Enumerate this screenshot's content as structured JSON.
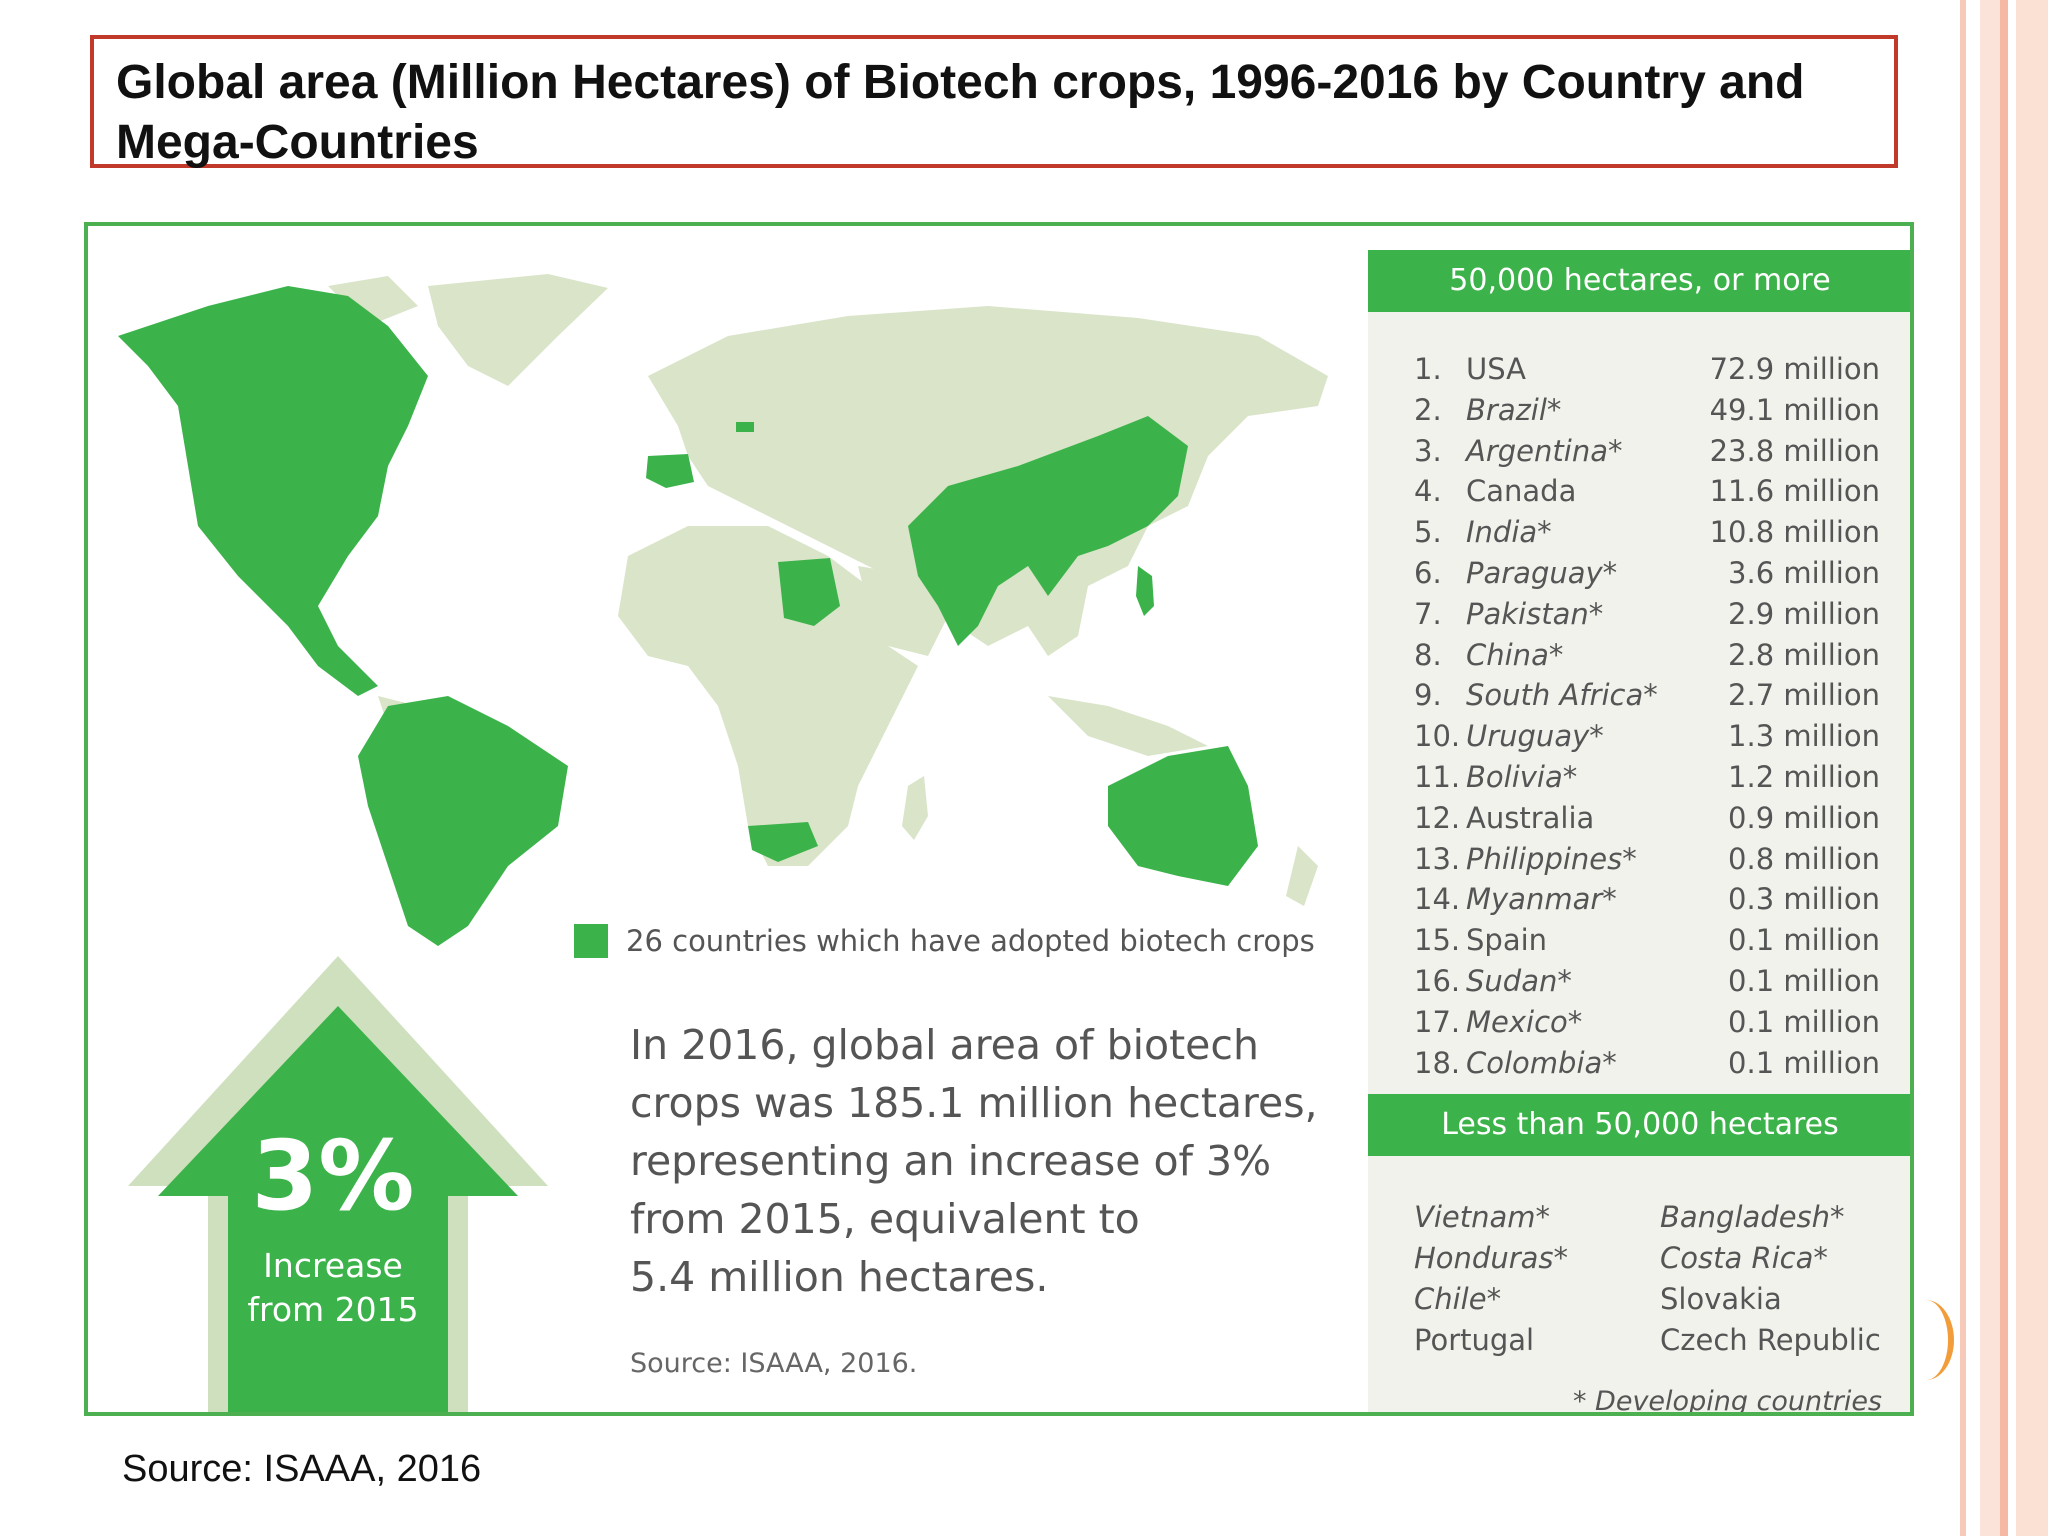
{
  "title": "Global area (Million Hectares) of Biotech crops, 1996-2016 by Country and Mega-Countries",
  "colors": {
    "adopted": "#3cb34a",
    "other_land": "#d9e4c9",
    "accent_border": "#c0392b",
    "frame": "#4caf50"
  },
  "legend": {
    "label": "26 countries which have adopted biotech crops"
  },
  "increase": {
    "percent": "3%",
    "caption_line1": "Increase",
    "caption_line2": "from 2015"
  },
  "summary": {
    "line1": "In 2016, global area of biotech",
    "line2": "crops was 185.1 million hectares,",
    "line3": "representing an increase of 3%",
    "line4": "from 2015, equivalent to",
    "line5": "5.4 million hectares."
  },
  "inner_source": "Source: ISAAA, 2016.",
  "panel": {
    "large_header": "50,000 hectares, or more",
    "large": [
      {
        "rank": "1.",
        "country": "USA",
        "value": "72.9 million",
        "developing": false
      },
      {
        "rank": "2.",
        "country": "Brazil*",
        "value": "49.1 million",
        "developing": true
      },
      {
        "rank": "3.",
        "country": "Argentina*",
        "value": "23.8 million",
        "developing": true
      },
      {
        "rank": "4.",
        "country": "Canada",
        "value": "11.6 million",
        "developing": false
      },
      {
        "rank": "5.",
        "country": "India*",
        "value": "10.8 million",
        "developing": true
      },
      {
        "rank": "6.",
        "country": "Paraguay*",
        "value": "3.6 million",
        "developing": true
      },
      {
        "rank": "7.",
        "country": "Pakistan*",
        "value": "2.9 million",
        "developing": true
      },
      {
        "rank": "8.",
        "country": "China*",
        "value": "2.8 million",
        "developing": true
      },
      {
        "rank": "9.",
        "country": "South Africa*",
        "value": "2.7 million",
        "developing": true
      },
      {
        "rank": "10.",
        "country": "Uruguay*",
        "value": "1.3 million",
        "developing": true
      },
      {
        "rank": "11.",
        "country": "Bolivia*",
        "value": "1.2 million",
        "developing": true
      },
      {
        "rank": "12.",
        "country": "Australia",
        "value": "0.9 million",
        "developing": false
      },
      {
        "rank": "13.",
        "country": "Philippines*",
        "value": "0.8 million",
        "developing": true
      },
      {
        "rank": "14.",
        "country": "Myanmar*",
        "value": "0.3 million",
        "developing": true
      },
      {
        "rank": "15.",
        "country": "Spain",
        "value": "0.1 million",
        "developing": false
      },
      {
        "rank": "16.",
        "country": "Sudan*",
        "value": "0.1 million",
        "developing": true
      },
      {
        "rank": "17.",
        "country": "Mexico*",
        "value": "0.1 million",
        "developing": true
      },
      {
        "rank": "18.",
        "country": "Colombia*",
        "value": "0.1 million",
        "developing": true
      }
    ],
    "small_header": "Less than 50,000 hectares",
    "small": [
      {
        "country": "Vietnam*",
        "developing": true
      },
      {
        "country": "Bangladesh*",
        "developing": true
      },
      {
        "country": "Honduras*",
        "developing": true
      },
      {
        "country": "Costa Rica*",
        "developing": true
      },
      {
        "country": "Chile*",
        "developing": true
      },
      {
        "country": "Slovakia",
        "developing": false
      },
      {
        "country": "Portugal",
        "developing": false
      },
      {
        "country": "Czech Republic",
        "developing": false
      }
    ],
    "footnote": "* Developing countries"
  },
  "footer_source": "Source: ISAAA, 2016"
}
